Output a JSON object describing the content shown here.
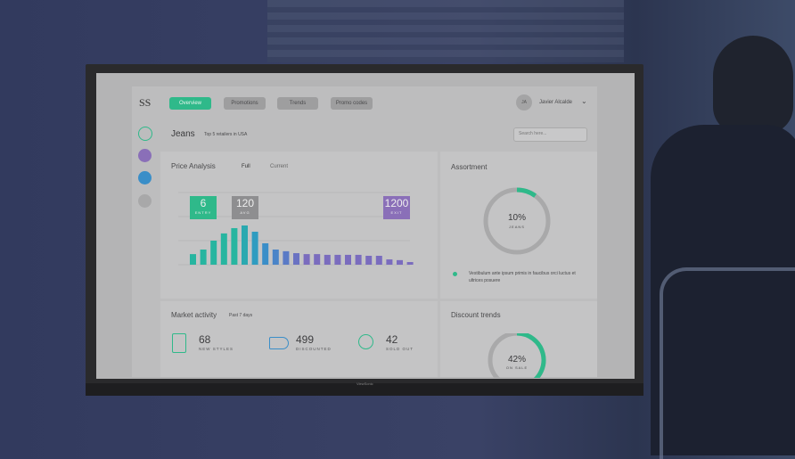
{
  "nav": {
    "logo": "SS",
    "tabs": [
      "Overview",
      "Promotions",
      "Trends",
      "Promo codes"
    ],
    "avatar": "JA",
    "user": "Javier Alcalde"
  },
  "header": {
    "title": "Jeans",
    "subtitle": "Top 5 retailers in USA",
    "search": "Search here..."
  },
  "price_analysis": {
    "title": "Price Analysis",
    "toggles": [
      "Full",
      "Current"
    ],
    "markers": [
      {
        "value": "6",
        "label": "ENTRY",
        "color": "#2fb98a"
      },
      {
        "value": "120",
        "label": "AVG",
        "color": "#8e8e90"
      },
      {
        "value": "1200",
        "label": "EXIT",
        "color": "#8a6fb8"
      }
    ],
    "chart_data": {
      "type": "bar",
      "values": [
        44,
        63,
        100,
        130,
        152,
        163,
        137,
        89,
        63,
        56,
        48,
        44,
        44,
        41,
        41,
        41,
        41,
        37,
        37,
        22,
        19,
        11
      ],
      "colors": [
        "#27b5a0",
        "#27b5a0",
        "#27b5a0",
        "#27b5a0",
        "#27b5a0",
        "#2aa9b0",
        "#2f9cc0",
        "#3a8ec8",
        "#4a84c8",
        "#5a7ac6",
        "#6a72c2",
        "#7a6cbe",
        "#7a6cbe",
        "#7a6cbe",
        "#7a6cbe",
        "#7a6cbe",
        "#7a6cbe",
        "#7a6cbe",
        "#7a6cbe",
        "#7a6cbe",
        "#7a6cbe",
        "#7a6cbe"
      ],
      "ylim": [
        0,
        300
      ]
    }
  },
  "assortment": {
    "title": "Assortment",
    "chart_data": {
      "type": "donut",
      "value": 10,
      "label": "10%",
      "caption": "JEANS",
      "color": "#2fb98a",
      "ylim": [
        0,
        100
      ]
    },
    "legend": "Vestibulum ante ipsum primis in faucibus orci luctus et ultrices posuere"
  },
  "market_activity": {
    "title": "Market activity",
    "subtitle": "Past 7 days",
    "stats": [
      {
        "value": "68",
        "label": "NEW STYLES"
      },
      {
        "value": "499",
        "label": "DISCOUNTED"
      },
      {
        "value": "42",
        "label": "SOLD OUT"
      }
    ]
  },
  "discount_trends": {
    "title": "Discount trends",
    "chart_data": {
      "type": "donut",
      "value": 42,
      "label": "42%",
      "caption": "ON SALE",
      "color": "#2fb98a",
      "ylim": [
        0,
        100
      ]
    }
  },
  "brand": "ViewSonic"
}
